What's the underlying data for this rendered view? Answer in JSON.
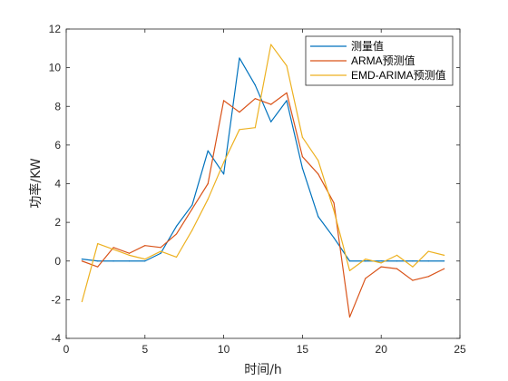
{
  "chart_data": {
    "type": "line",
    "xlabel": "时间/h",
    "ylabel": "功率/KW",
    "xlim": [
      0,
      25
    ],
    "ylim": [
      -4,
      12
    ],
    "xticks": [
      "0",
      "5",
      "10",
      "15",
      "20",
      "25"
    ],
    "yticks": [
      "-4",
      "-2",
      "0",
      "2",
      "4",
      "6",
      "8",
      "10",
      "12"
    ],
    "grid": false,
    "legend_position": "top-right",
    "x": [
      1,
      2,
      3,
      4,
      5,
      6,
      7,
      8,
      9,
      10,
      11,
      12,
      13,
      14,
      15,
      16,
      17,
      18,
      19,
      20,
      21,
      22,
      23,
      24
    ],
    "series": [
      {
        "name": "测量值",
        "color": "#0072BD",
        "values": [
          0.1,
          0,
          0,
          0,
          0,
          0.4,
          1.8,
          2.9,
          5.7,
          4.5,
          10.5,
          9.1,
          7.2,
          8.3,
          4.8,
          2.3,
          1.2,
          0,
          0,
          0,
          0,
          0,
          0,
          0
        ]
      },
      {
        "name": "ARMA预测值",
        "color": "#D95319",
        "values": [
          0,
          -0.3,
          0.7,
          0.4,
          0.8,
          0.7,
          1.4,
          2.7,
          4.0,
          8.3,
          7.7,
          8.4,
          8.1,
          8.7,
          5.4,
          4.5,
          3.0,
          -2.9,
          -0.9,
          -0.3,
          -0.4,
          -1.0,
          -0.8,
          -0.4
        ]
      },
      {
        "name": "EMD-ARIMA预测值",
        "color": "#EDB120",
        "values": [
          -2.1,
          0.9,
          0.6,
          0.3,
          0.1,
          0.5,
          0.2,
          1.6,
          3.2,
          5.1,
          6.8,
          6.9,
          11.2,
          10.1,
          6.4,
          5.2,
          2.6,
          -0.5,
          0.1,
          -0.1,
          0.3,
          -0.3,
          0.5,
          0.3
        ]
      }
    ]
  }
}
